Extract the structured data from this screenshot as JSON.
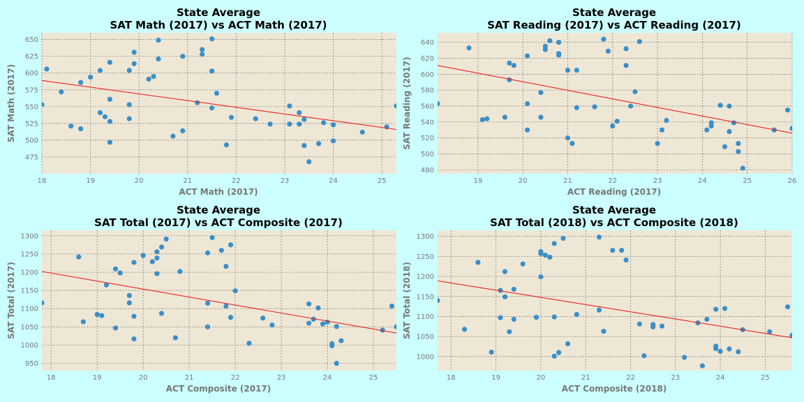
{
  "figure": {
    "background": "#ccffff",
    "plot_background": "#efe7d6",
    "point_color": "#3a8fc9",
    "line_color": "#e8221e",
    "grid_color": "#777777"
  },
  "chart_data": [
    {
      "type": "scatter",
      "title_line1": "State Average",
      "title_line2": "SAT Math (2017) vs ACT Math (2017)",
      "xlabel": "ACT Math (2017)",
      "ylabel": "SAT Math (2017)",
      "xlim": [
        18.0,
        25.3
      ],
      "ylim": [
        450,
        660
      ],
      "xticks": [
        18,
        19,
        20,
        21,
        22,
        23,
        24,
        25
      ],
      "yticks": [
        475,
        500,
        525,
        550,
        575,
        600,
        625,
        650
      ],
      "trend": [
        [
          18.0,
          589
        ],
        [
          25.3,
          516
        ]
      ],
      "points": [
        [
          18.0,
          553
        ],
        [
          18.1,
          606
        ],
        [
          18.4,
          572
        ],
        [
          18.6,
          521
        ],
        [
          18.8,
          586
        ],
        [
          18.8,
          517
        ],
        [
          19.0,
          594
        ],
        [
          19.2,
          604
        ],
        [
          19.2,
          541
        ],
        [
          19.3,
          535
        ],
        [
          19.4,
          616
        ],
        [
          19.4,
          561
        ],
        [
          19.4,
          528
        ],
        [
          19.4,
          497
        ],
        [
          19.8,
          604
        ],
        [
          19.8,
          553
        ],
        [
          19.8,
          532
        ],
        [
          19.9,
          631
        ],
        [
          19.9,
          614
        ],
        [
          20.2,
          591
        ],
        [
          20.3,
          595
        ],
        [
          20.4,
          649
        ],
        [
          20.4,
          621
        ],
        [
          20.7,
          506
        ],
        [
          20.9,
          625
        ],
        [
          20.9,
          514
        ],
        [
          21.2,
          556
        ],
        [
          21.3,
          635
        ],
        [
          21.3,
          628
        ],
        [
          21.5,
          651
        ],
        [
          21.5,
          603
        ],
        [
          21.5,
          548
        ],
        [
          21.6,
          570
        ],
        [
          21.8,
          493
        ],
        [
          21.9,
          534
        ],
        [
          22.4,
          532
        ],
        [
          22.7,
          524
        ],
        [
          23.1,
          551
        ],
        [
          23.1,
          524
        ],
        [
          23.3,
          541
        ],
        [
          23.3,
          524
        ],
        [
          23.4,
          531
        ],
        [
          23.4,
          492
        ],
        [
          23.5,
          468
        ],
        [
          23.7,
          495
        ],
        [
          23.8,
          526
        ],
        [
          24.0,
          523
        ],
        [
          24.0,
          499
        ],
        [
          24.6,
          512
        ],
        [
          25.1,
          520
        ],
        [
          25.3,
          551
        ]
      ]
    },
    {
      "type": "scatter",
      "title_line1": "State Average",
      "title_line2": "SAT Reading (2017) vs ACT Reading (2017)",
      "xlabel": "ACT Reading (2017)",
      "ylabel": "SAT Reading (2017)",
      "xlim": [
        18.1,
        26.0
      ],
      "ylim": [
        475,
        652
      ],
      "xticks": [
        19,
        20,
        21,
        22,
        23,
        24,
        25,
        26
      ],
      "yticks": [
        480,
        500,
        520,
        540,
        560,
        580,
        600,
        620,
        640
      ],
      "trend": [
        [
          18.1,
          611
        ],
        [
          26.0,
          526
        ]
      ],
      "points": [
        [
          18.1,
          563
        ],
        [
          18.8,
          633
        ],
        [
          19.1,
          543
        ],
        [
          19.2,
          544
        ],
        [
          19.6,
          546
        ],
        [
          19.7,
          614
        ],
        [
          19.7,
          593
        ],
        [
          19.8,
          611
        ],
        [
          20.1,
          623
        ],
        [
          20.1,
          563
        ],
        [
          20.1,
          530
        ],
        [
          20.4,
          577
        ],
        [
          20.4,
          546
        ],
        [
          20.5,
          635
        ],
        [
          20.5,
          631
        ],
        [
          20.6,
          642
        ],
        [
          20.8,
          640
        ],
        [
          20.8,
          626
        ],
        [
          20.8,
          624
        ],
        [
          21.0,
          605
        ],
        [
          21.0,
          520
        ],
        [
          21.1,
          513
        ],
        [
          21.2,
          605
        ],
        [
          21.2,
          558
        ],
        [
          21.6,
          559
        ],
        [
          21.8,
          644
        ],
        [
          21.9,
          629
        ],
        [
          22.0,
          535
        ],
        [
          22.1,
          541
        ],
        [
          22.3,
          632
        ],
        [
          22.3,
          611
        ],
        [
          22.4,
          560
        ],
        [
          22.5,
          578
        ],
        [
          22.6,
          641
        ],
        [
          23.0,
          513
        ],
        [
          23.1,
          530
        ],
        [
          23.2,
          542
        ],
        [
          24.1,
          530
        ],
        [
          24.2,
          539
        ],
        [
          24.2,
          535
        ],
        [
          24.4,
          561
        ],
        [
          24.5,
          509
        ],
        [
          24.6,
          560
        ],
        [
          24.6,
          528
        ],
        [
          24.7,
          539
        ],
        [
          24.8,
          513
        ],
        [
          24.8,
          503
        ],
        [
          24.9,
          482
        ],
        [
          25.6,
          530
        ],
        [
          25.9,
          555
        ],
        [
          26.0,
          532
        ]
      ]
    },
    {
      "type": "scatter",
      "title_line1": "State Average",
      "title_line2": "SAT Total (2017) vs ACT Composite (2017)",
      "xlabel": "ACT Composite (2017)",
      "ylabel": "SAT Total (2017)",
      "xlim": [
        17.8,
        25.5
      ],
      "ylim": [
        930,
        1315
      ],
      "xticks": [
        18,
        19,
        20,
        21,
        22,
        23,
        24,
        25
      ],
      "yticks": [
        950,
        1000,
        1050,
        1100,
        1150,
        1200,
        1250,
        1300
      ],
      "trend": [
        [
          17.8,
          1202
        ],
        [
          25.5,
          1033
        ]
      ],
      "points": [
        [
          17.8,
          1116
        ],
        [
          18.6,
          1242
        ],
        [
          18.7,
          1064
        ],
        [
          19.0,
          1084
        ],
        [
          19.1,
          1081
        ],
        [
          19.2,
          1165
        ],
        [
          19.4,
          1209
        ],
        [
          19.4,
          1047
        ],
        [
          19.5,
          1198
        ],
        [
          19.7,
          1136
        ],
        [
          19.7,
          1116
        ],
        [
          19.8,
          1227
        ],
        [
          19.8,
          1079
        ],
        [
          19.8,
          1017
        ],
        [
          20.0,
          1246
        ],
        [
          20.2,
          1229
        ],
        [
          20.3,
          1256
        ],
        [
          20.3,
          1239
        ],
        [
          20.3,
          1196
        ],
        [
          20.4,
          1269
        ],
        [
          20.4,
          1087
        ],
        [
          20.5,
          1291
        ],
        [
          20.7,
          1020
        ],
        [
          20.8,
          1202
        ],
        [
          21.4,
          1253
        ],
        [
          21.4,
          1115
        ],
        [
          21.4,
          1050
        ],
        [
          21.5,
          1295
        ],
        [
          21.7,
          1260
        ],
        [
          21.8,
          1216
        ],
        [
          21.8,
          1107
        ],
        [
          21.9,
          1275
        ],
        [
          21.9,
          1076
        ],
        [
          22.0,
          1149
        ],
        [
          22.3,
          1005
        ],
        [
          22.6,
          1074
        ],
        [
          22.8,
          1055
        ],
        [
          23.6,
          1113
        ],
        [
          23.6,
          1060
        ],
        [
          23.7,
          1071
        ],
        [
          23.8,
          1102
        ],
        [
          23.9,
          1058
        ],
        [
          24.0,
          1063
        ],
        [
          24.1,
          1004
        ],
        [
          24.1,
          998
        ],
        [
          24.2,
          1051
        ],
        [
          24.2,
          950
        ],
        [
          24.3,
          1012
        ],
        [
          25.2,
          1041
        ],
        [
          25.4,
          1107
        ],
        [
          25.5,
          1050
        ]
      ]
    },
    {
      "type": "scatter",
      "title_line1": "State Average",
      "title_line2": "SAT Total (2018) vs ACT Composite (2018)",
      "xlabel": "ACT Composite (2018)",
      "ylabel": "SAT Total (2018)",
      "xlim": [
        17.7,
        25.6
      ],
      "ylim": [
        965,
        1315
      ],
      "xticks": [
        18,
        19,
        20,
        21,
        22,
        23,
        24,
        25
      ],
      "yticks": [
        1000,
        1050,
        1100,
        1150,
        1200,
        1250,
        1300
      ],
      "trend": [
        [
          17.7,
          1189
        ],
        [
          25.6,
          1047
        ]
      ],
      "points": [
        [
          17.7,
          1140
        ],
        [
          18.3,
          1068
        ],
        [
          18.6,
          1235
        ],
        [
          18.9,
          1011
        ],
        [
          19.1,
          1097
        ],
        [
          19.1,
          1165
        ],
        [
          19.2,
          1212
        ],
        [
          19.2,
          1149
        ],
        [
          19.3,
          1062
        ],
        [
          19.4,
          1168
        ],
        [
          19.4,
          1093
        ],
        [
          19.6,
          1231
        ],
        [
          19.9,
          1098
        ],
        [
          20.0,
          1262
        ],
        [
          20.0,
          1257
        ],
        [
          20.0,
          1199
        ],
        [
          20.1,
          1253
        ],
        [
          20.2,
          1248
        ],
        [
          20.3,
          1282
        ],
        [
          20.3,
          1099
        ],
        [
          20.3,
          1001
        ],
        [
          20.4,
          1010
        ],
        [
          20.5,
          1295
        ],
        [
          20.6,
          1032
        ],
        [
          20.8,
          1105
        ],
        [
          21.3,
          1298
        ],
        [
          21.3,
          1116
        ],
        [
          21.4,
          1063
        ],
        [
          21.6,
          1265
        ],
        [
          21.8,
          1265
        ],
        [
          21.9,
          1241
        ],
        [
          22.2,
          1081
        ],
        [
          22.3,
          1002
        ],
        [
          22.5,
          1080
        ],
        [
          22.5,
          1074
        ],
        [
          22.7,
          1076
        ],
        [
          23.2,
          998
        ],
        [
          23.5,
          1084
        ],
        [
          23.6,
          977
        ],
        [
          23.7,
          1093
        ],
        [
          23.9,
          1118
        ],
        [
          23.9,
          1026
        ],
        [
          23.9,
          1020
        ],
        [
          24.0,
          1013
        ],
        [
          24.1,
          1120
        ],
        [
          24.2,
          1019
        ],
        [
          24.4,
          1012
        ],
        [
          24.5,
          1067
        ],
        [
          25.1,
          1062
        ],
        [
          25.5,
          1124
        ],
        [
          25.6,
          1053
        ]
      ]
    }
  ]
}
